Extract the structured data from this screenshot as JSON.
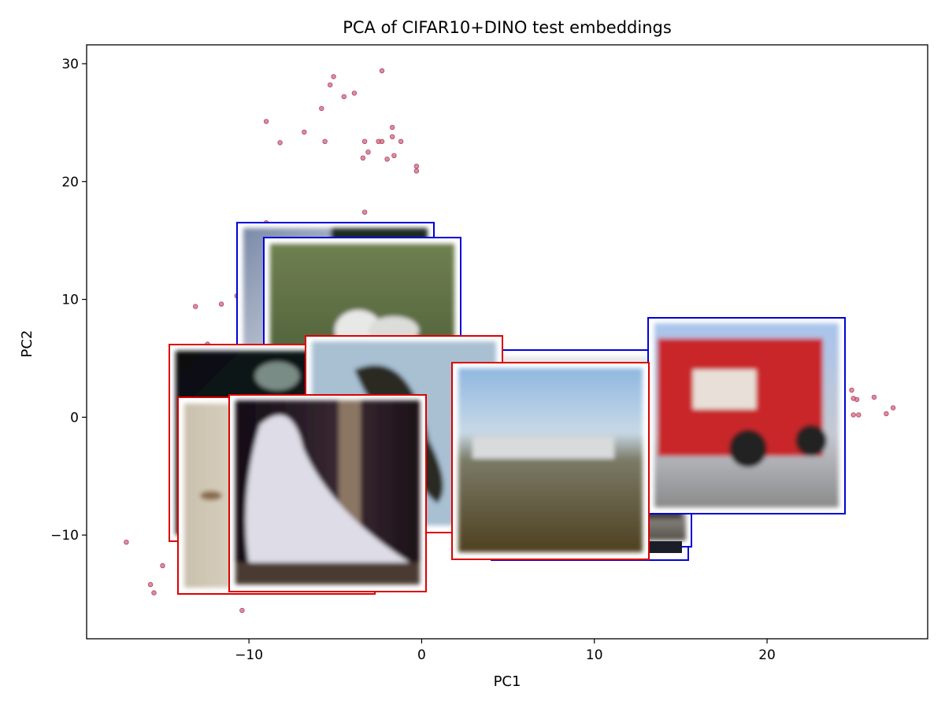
{
  "chart_data": {
    "type": "scatter",
    "title": "PCA of CIFAR10+DINO test embeddings",
    "xlabel": "PC1",
    "ylabel": "PC2",
    "xlim": [
      -19.4,
      29.3
    ],
    "ylim": [
      -18.8,
      31.6
    ],
    "xticks": [
      -10,
      0,
      10,
      20
    ],
    "yticks": [
      -10,
      0,
      10,
      20,
      30
    ],
    "grid": false,
    "legend": "none",
    "colors": {
      "point": "#d2687f",
      "point_edge": "#b04060",
      "frame_blue": "#0000dd",
      "frame_red": "#dd0000"
    },
    "points": [
      {
        "x": -2.3,
        "y": 29.4
      },
      {
        "x": -5.1,
        "y": 28.9
      },
      {
        "x": -5.3,
        "y": 28.2
      },
      {
        "x": -3.9,
        "y": 27.5
      },
      {
        "x": -4.5,
        "y": 27.2
      },
      {
        "x": -5.8,
        "y": 26.2
      },
      {
        "x": -9.0,
        "y": 25.1
      },
      {
        "x": -1.7,
        "y": 24.6
      },
      {
        "x": -6.8,
        "y": 24.2
      },
      {
        "x": -1.7,
        "y": 23.8
      },
      {
        "x": -8.2,
        "y": 23.3
      },
      {
        "x": -5.6,
        "y": 23.4
      },
      {
        "x": -3.3,
        "y": 23.4
      },
      {
        "x": -2.5,
        "y": 23.4
      },
      {
        "x": -2.3,
        "y": 23.4
      },
      {
        "x": -1.2,
        "y": 23.4
      },
      {
        "x": -3.1,
        "y": 22.5
      },
      {
        "x": -1.6,
        "y": 22.2
      },
      {
        "x": -3.4,
        "y": 22.0
      },
      {
        "x": -2.0,
        "y": 21.9
      },
      {
        "x": -0.3,
        "y": 21.3
      },
      {
        "x": -0.3,
        "y": 20.9
      },
      {
        "x": -3.3,
        "y": 17.4
      },
      {
        "x": -9.0,
        "y": 16.5
      },
      {
        "x": -10.7,
        "y": 10.3
      },
      {
        "x": -11.6,
        "y": 9.6
      },
      {
        "x": -13.1,
        "y": 9.4
      },
      {
        "x": -12.4,
        "y": 6.2
      },
      {
        "x": -17.1,
        "y": -10.6
      },
      {
        "x": -15.0,
        "y": -12.6
      },
      {
        "x": -15.7,
        "y": -14.2
      },
      {
        "x": -15.5,
        "y": -14.9
      },
      {
        "x": -10.4,
        "y": -16.4
      },
      {
        "x": 25.2,
        "y": 1.5
      },
      {
        "x": 25.0,
        "y": 1.6
      },
      {
        "x": 26.2,
        "y": 1.7
      },
      {
        "x": 27.3,
        "y": 0.8
      },
      {
        "x": 26.9,
        "y": 0.3
      },
      {
        "x": 25.0,
        "y": 0.2
      },
      {
        "x": 25.3,
        "y": 0.2
      },
      {
        "x": 24.9,
        "y": 2.3
      }
    ],
    "thumbnails": [
      {
        "subject": "rock-scene",
        "frame": "blue",
        "pc1": -5.2,
        "pc2": 9.8
      },
      {
        "subject": "white-dog",
        "frame": "blue",
        "pc1": -3.6,
        "pc2": 8.5
      },
      {
        "subject": "white-truck",
        "frame": "blue",
        "pc1": 10.3,
        "pc2": -2.9
      },
      {
        "subject": "fire-truck",
        "frame": "blue",
        "pc1": 19.3,
        "pc2": 0.3
      },
      {
        "subject": "dark-bird",
        "frame": "red",
        "pc1": -8.9,
        "pc2": -2.6
      },
      {
        "subject": "pale-bird",
        "frame": "red",
        "pc1": -8.7,
        "pc2": -6.7
      },
      {
        "subject": "white-parrot",
        "frame": "red",
        "pc1": -5.4,
        "pc2": -6.2
      },
      {
        "subject": "crow-sky",
        "frame": "red",
        "pc1": -0.9,
        "pc2": -1.2
      },
      {
        "subject": "ship-harbor",
        "frame": "red",
        "pc1": 7.9,
        "pc2": -3.7
      }
    ]
  }
}
